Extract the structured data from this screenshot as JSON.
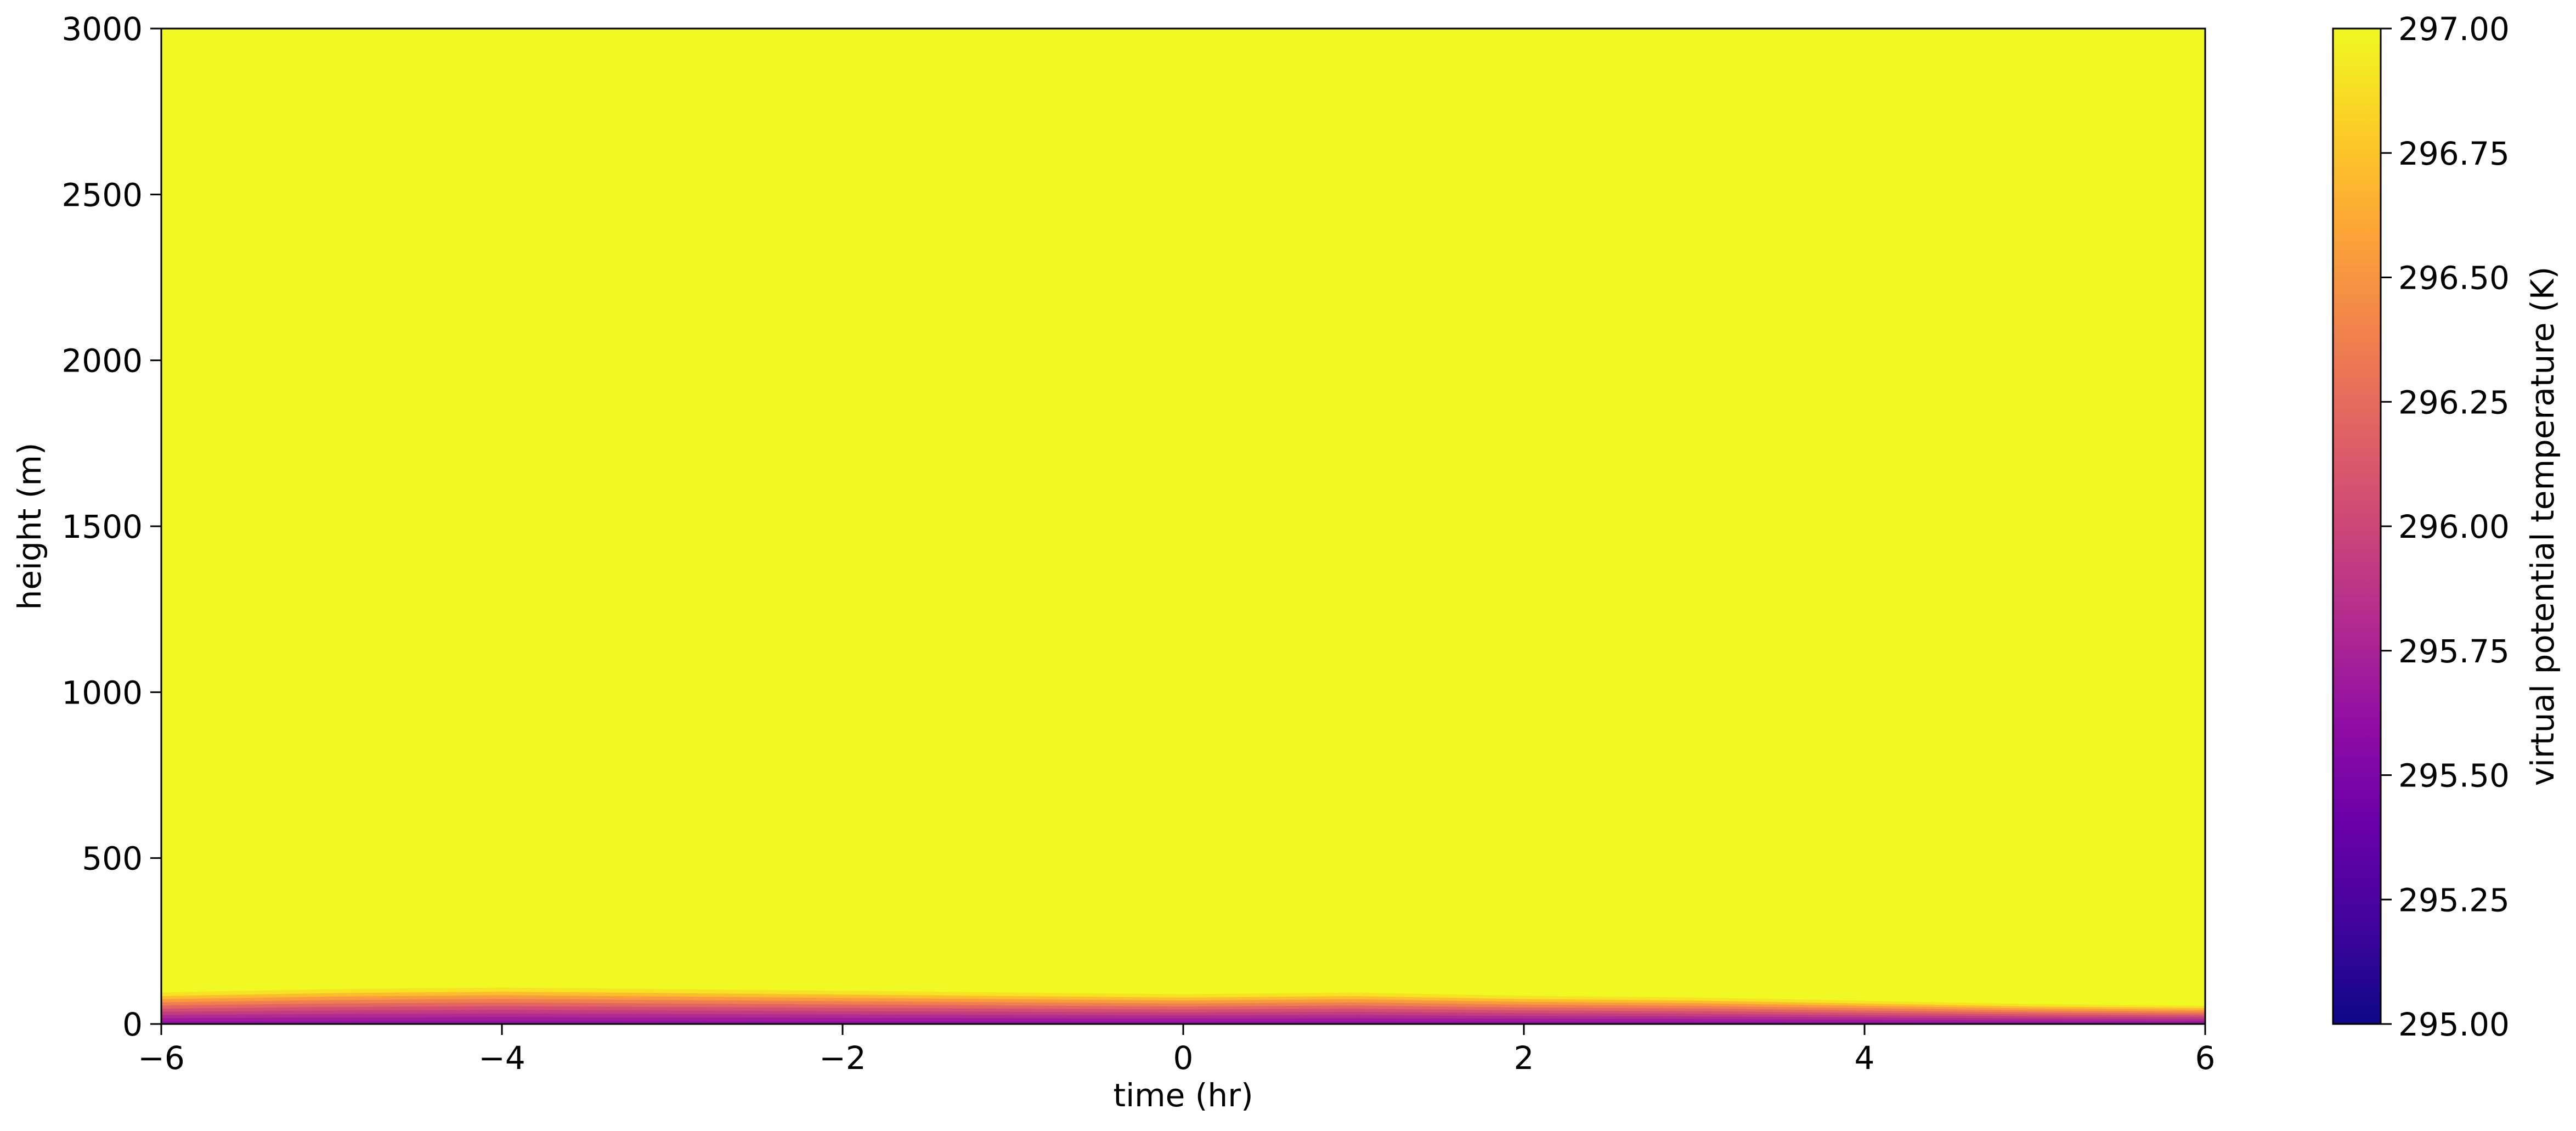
{
  "chart_data": {
    "type": "heatmap",
    "title": "",
    "xlabel": "time (hr)",
    "ylabel": "height (m)",
    "xlim": [
      -6,
      6
    ],
    "ylim": [
      0,
      3000
    ],
    "x_ticks": [
      -6,
      -4,
      -2,
      0,
      2,
      4,
      6
    ],
    "x_tick_labels": [
      "−6",
      "−4",
      "−2",
      "0",
      "2",
      "4",
      "6"
    ],
    "y_ticks": [
      0,
      500,
      1000,
      1500,
      2000,
      2500,
      3000
    ],
    "y_tick_labels": [
      "0",
      "500",
      "1000",
      "1500",
      "2000",
      "2500",
      "3000"
    ],
    "colorbar": {
      "label": "virtual potential temperature (K)",
      "colormap": "plasma",
      "range": [
        295.0,
        297.0
      ],
      "ticks": [
        295.0,
        295.25,
        295.5,
        295.75,
        296.0,
        296.25,
        296.5,
        296.75,
        297.0
      ],
      "tick_labels": [
        "295.00",
        "295.25",
        "295.50",
        "295.75",
        "296.00",
        "296.25",
        "296.50",
        "296.75",
        "297.00"
      ]
    },
    "background_value": 297.0,
    "surface_layer": {
      "description_value_at_ground": 295.6,
      "time": [
        -6,
        -5,
        -4,
        -3,
        -2,
        -1,
        0,
        1,
        2,
        3,
        4,
        5,
        6
      ],
      "mixed_layer_top_height_m": [
        95,
        105,
        110,
        105,
        100,
        95,
        90,
        95,
        85,
        80,
        70,
        60,
        55
      ]
    },
    "grid": false,
    "legend": "none"
  }
}
